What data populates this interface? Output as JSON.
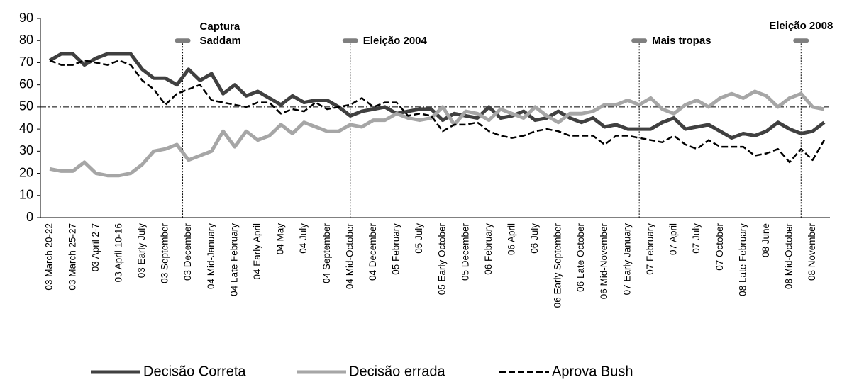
{
  "chart_data": {
    "type": "line",
    "categories": [
      "03 March 20-22",
      null,
      "03 March 25-27",
      null,
      "03 April 2-7",
      null,
      "03 April 10-16",
      null,
      "03 Early July",
      null,
      "03 September",
      null,
      "03 December",
      null,
      "04 Mid-January",
      null,
      "04 Late February",
      null,
      "04 Early April",
      null,
      "04 May",
      null,
      "04 July",
      null,
      "04 September",
      null,
      "04 Mid-October",
      null,
      "04 December",
      null,
      "05 February",
      null,
      "05 July",
      null,
      "05 Early October",
      null,
      "05 December",
      null,
      "06 February",
      null,
      "06 April",
      null,
      "06 July",
      null,
      "06 Early September",
      null,
      "06 Late October",
      null,
      "06 Mid-November",
      null,
      "07 Early January",
      null,
      "07 February",
      null,
      "07 April",
      null,
      "07 July",
      null,
      "07 October",
      null,
      "08 Late February",
      null,
      "08 June",
      null,
      "08 Mid-October",
      null,
      "08 November",
      null
    ],
    "series": [
      {
        "name": "Decisão Correta",
        "color": "#404040",
        "style": "solid",
        "values": [
          71,
          74,
          74,
          69,
          72,
          74,
          74,
          74,
          67,
          63,
          63,
          60,
          67,
          62,
          65,
          56,
          60,
          55,
          57,
          54,
          51,
          55,
          52,
          53,
          53,
          50,
          46,
          48,
          49,
          50,
          47,
          48,
          49,
          49,
          44,
          47,
          46,
          45,
          50,
          45,
          46,
          48,
          44,
          45,
          48,
          45,
          43,
          45,
          41,
          42,
          40,
          40,
          40,
          43,
          45,
          40,
          41,
          42,
          39,
          36,
          38,
          37,
          39,
          43,
          40,
          38,
          39,
          43
        ]
      },
      {
        "name": "Decisão errada",
        "color": "#a6a6a6",
        "style": "solid",
        "values": [
          22,
          21,
          21,
          25,
          20,
          19,
          19,
          20,
          24,
          30,
          31,
          33,
          26,
          28,
          30,
          39,
          32,
          39,
          35,
          37,
          42,
          38,
          43,
          41,
          39,
          39,
          42,
          41,
          44,
          44,
          47,
          45,
          44,
          45,
          50,
          42,
          48,
          47,
          44,
          49,
          47,
          45,
          50,
          46,
          43,
          47,
          47,
          48,
          51,
          51,
          53,
          51,
          54,
          49,
          47,
          51,
          53,
          50,
          54,
          56,
          54,
          57,
          55,
          50,
          54,
          56,
          50,
          49
        ]
      },
      {
        "name": "Aprova Bush",
        "color": "#000000",
        "style": "dashed",
        "values": [
          71,
          69,
          69,
          71,
          70,
          69,
          71,
          69,
          62,
          58,
          51,
          56,
          58,
          60,
          53,
          52,
          51,
          50,
          52,
          52,
          47,
          49,
          48,
          52,
          49,
          50,
          51,
          54,
          50,
          52,
          52,
          46,
          47,
          46,
          39,
          42,
          42,
          43,
          39,
          37,
          36,
          37,
          39,
          40,
          39,
          37,
          37,
          37,
          33,
          37,
          37,
          36,
          35,
          34,
          37,
          33,
          31,
          35,
          32,
          32,
          32,
          28,
          29,
          31,
          25,
          31,
          26,
          35
        ]
      }
    ],
    "ylim": [
      0,
      90
    ],
    "yticks": [
      0,
      10,
      20,
      30,
      40,
      50,
      60,
      70,
      80,
      90
    ],
    "reference_line": 50,
    "annotations": [
      {
        "lines": [
          "Captura",
          "Saddam"
        ],
        "x": 11.5,
        "marker": 80
      },
      {
        "lines": [
          "Eleição 2004"
        ],
        "x": 26,
        "marker": 80
      },
      {
        "lines": [
          "Mais tropas"
        ],
        "x": 51,
        "marker": 80
      },
      {
        "lines": [
          "Eleição 2008"
        ],
        "x": 65,
        "marker": 80
      }
    ],
    "grid": false,
    "legend": "bottom"
  }
}
